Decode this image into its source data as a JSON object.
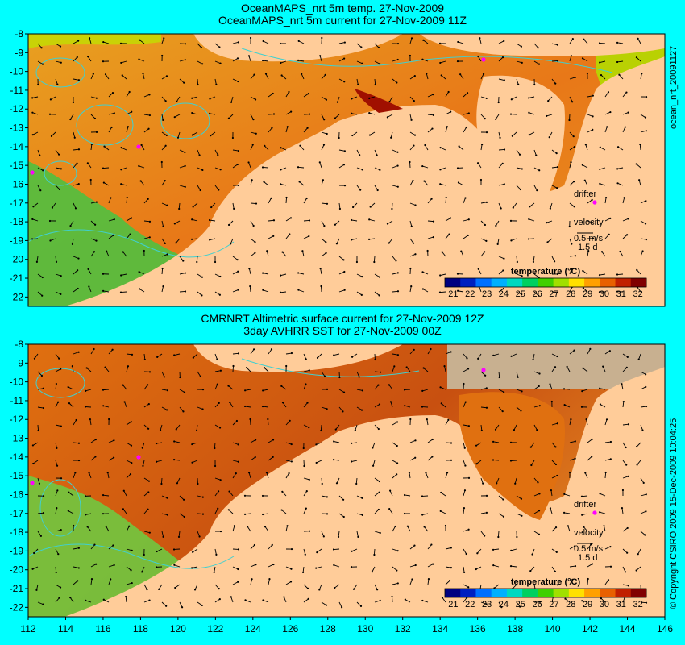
{
  "panels": [
    {
      "title_line1": "OceanMAPS_nrt 5m temp. 27-Nov-2009",
      "title_line2": "OceanMAPS_nrt 5m current for 27-Nov-2009 11Z",
      "side_label": "ocean_nrt_20091127"
    },
    {
      "title_line1": "CMRNRT Altimetric surface current for 27-Nov-2009 12Z",
      "title_line2": "3day AVHRR SST for 27-Nov-2009 00Z",
      "side_label": "© Copyright CSIRO 2009   15-Dec-2009 10:04:25"
    }
  ],
  "map": {
    "lon_range": [
      112,
      146
    ],
    "lat_range": [
      -22.5,
      -8
    ],
    "lon_ticks": [
      "112",
      "114",
      "116",
      "118",
      "120",
      "122",
      "124",
      "126",
      "128",
      "130",
      "132",
      "134",
      "136",
      "138",
      "140",
      "142",
      "144",
      "146"
    ],
    "lat_ticks": [
      "-8",
      "-9",
      "-10",
      "-11",
      "-12",
      "-13",
      "-14",
      "-15",
      "-16",
      "-17",
      "-18",
      "-19",
      "-20",
      "-21",
      "-22"
    ]
  },
  "legend": {
    "drifter_label": "drifter",
    "velocity_label": "velocity",
    "speed_label": "0.5 m/s",
    "scale_label": "1.5 d"
  },
  "colorbar": {
    "title": "temperature (°C)",
    "labels": [
      "21",
      "22",
      "23",
      "24",
      "25",
      "26",
      "27",
      "28",
      "29",
      "30",
      "31",
      "32"
    ],
    "colors": [
      "#000080",
      "#0020c0",
      "#0070ff",
      "#00b0ff",
      "#00d8c0",
      "#00d060",
      "#40d000",
      "#a0e000",
      "#ffe000",
      "#ffa000",
      "#e86000",
      "#c02000",
      "#800000"
    ]
  },
  "colors": {
    "background": "#00ffff",
    "land": "#ffcc99",
    "nodata": "#c8b090",
    "warm": "#e88020",
    "cool": "#40c040",
    "contour": "#40d0d0",
    "drifter": "#ff00ff"
  }
}
